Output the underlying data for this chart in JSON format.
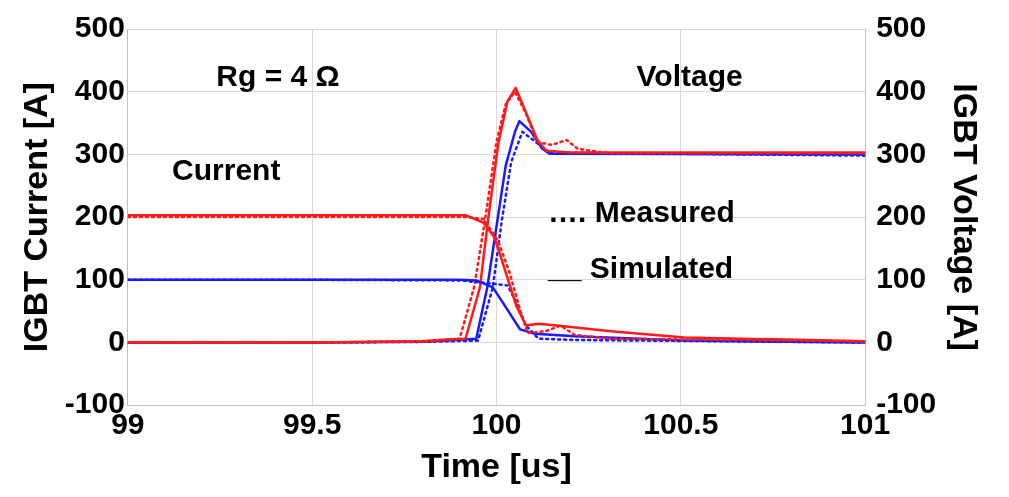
{
  "chart_data": {
    "type": "line",
    "xlabel": "Time [us]",
    "ylabel": "IGBT Current [A]",
    "y2label": "IGBT Voltage [A]",
    "xlim": [
      99,
      101
    ],
    "xticks": [
      99,
      99.5,
      100,
      100.5,
      101
    ],
    "ylim": [
      -100,
      500
    ],
    "yticks": [
      -100,
      0,
      100,
      200,
      300,
      400,
      500
    ],
    "y2lim": [
      -100,
      500
    ],
    "y2ticks": [
      -100,
      0,
      100,
      200,
      300,
      400,
      500
    ],
    "grid": true,
    "marker": "none",
    "annotations": [
      "Rg = 4 Ω",
      "Current",
      "Voltage",
      "…. Measured",
      "__ Simulated"
    ],
    "series": [
      {
        "color": "#ff1a1a",
        "line_style": "solid",
        "x": [
          99,
          99.5,
          99.817,
          99.916,
          99.965,
          99.995,
          100.025,
          100.054,
          100.08,
          100.114,
          100.163,
          100.31,
          100.51,
          101
        ],
        "values": [
          203,
          203,
          203,
          203,
          191,
          167,
          112,
          58,
          27,
          30,
          27,
          18,
          8,
          2
        ]
      },
      {
        "color": "#ff1a1a",
        "line_style": "dotted",
        "x": [
          99,
          99.5,
          99.817,
          99.916,
          99.965,
          100.005,
          100.035,
          100.064,
          100.084,
          100.134,
          100.173,
          100.213,
          100.31,
          101
        ],
        "values": [
          200,
          200,
          200,
          200,
          197,
          161,
          112,
          52,
          15,
          18,
          27,
          12,
          6,
          2
        ]
      },
      {
        "color": "#1a1aff",
        "line_style": "solid",
        "x": [
          99,
          99.5,
          99.9,
          99.945,
          99.99,
          100.03,
          100.064,
          100.104,
          100.213,
          100.51,
          101
        ],
        "values": [
          100,
          100,
          100,
          99,
          88,
          52,
          21,
          14,
          10,
          3,
          0
        ]
      },
      {
        "color": "#1a1aff",
        "line_style": "dotted",
        "x": [
          99,
          99.5,
          99.9,
          99.985,
          100.03,
          100.054,
          100.08,
          100.114,
          100.213,
          101
        ],
        "values": [
          100,
          100,
          99,
          94,
          91,
          64,
          27,
          6,
          4,
          0
        ]
      },
      {
        "color": "#ff1a1a",
        "line_style": "solid",
        "x": [
          99,
          99.5,
          99.8,
          99.88,
          99.916,
          99.955,
          99.98,
          100.005,
          100.03,
          100.052,
          100.08,
          100.11,
          100.134,
          100.2,
          101
        ],
        "values": [
          0,
          0,
          2,
          5,
          6,
          88,
          209,
          318,
          385,
          406,
          367,
          324,
          306,
          303,
          303
        ]
      },
      {
        "color": "#ff1a1a",
        "line_style": "dotted",
        "x": [
          99,
          99.5,
          99.8,
          99.9,
          99.94,
          99.97,
          100.0,
          100.025,
          100.05,
          100.08,
          100.11,
          100.15,
          100.19,
          100.22,
          100.3,
          101
        ],
        "values": [
          0,
          0,
          2,
          6,
          90,
          200,
          320,
          380,
          400,
          365,
          320,
          315,
          323,
          309,
          302,
          302
        ]
      },
      {
        "color": "#1a1aff",
        "line_style": "solid",
        "x": [
          99,
          99.5,
          99.8,
          99.945,
          99.975,
          100.0,
          100.025,
          100.05,
          100.062,
          100.094,
          100.124,
          100.144,
          101
        ],
        "values": [
          0,
          0,
          1,
          6,
          88,
          185,
          282,
          336,
          353,
          336,
          309,
          301,
          300
        ]
      },
      {
        "color": "#1a1aff",
        "line_style": "dotted",
        "x": [
          99,
          99.5,
          99.8,
          99.95,
          99.99,
          100.015,
          100.04,
          100.07,
          100.104,
          100.144,
          101
        ],
        "values": [
          0,
          0,
          1,
          3,
          88,
          197,
          288,
          336,
          321,
          303,
          298
        ]
      }
    ]
  }
}
